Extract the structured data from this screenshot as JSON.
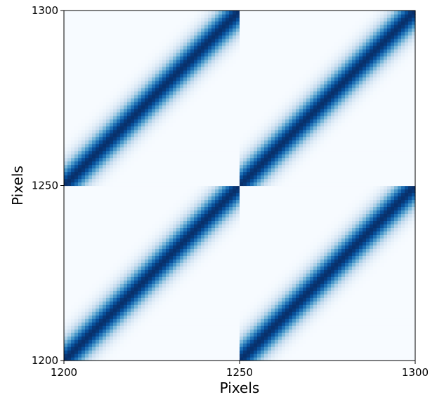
{
  "chart_data": {
    "type": "heatmap",
    "title": "",
    "xlabel": "Pixels",
    "ylabel": "Pixels",
    "xlim": [
      1200,
      1300
    ],
    "ylim": [
      1200,
      1300
    ],
    "xticks": [
      1200,
      1250,
      1300
    ],
    "yticks": [
      1200,
      1250,
      1300
    ],
    "grid": false,
    "colormap": "Blues",
    "colors": {
      "low": "#f7fbff",
      "high": "#08306b"
    },
    "pattern": {
      "description_values": "Block-periodic correlation: value depends on diagonal offset within each 50-pixel block",
      "period": 50,
      "peak_value": 1.0,
      "gaussian_sigma": 4
    },
    "blocks": [
      {
        "x_range": [
          1200,
          1250
        ],
        "y_range": [
          1200,
          1250
        ],
        "band": "diagonal"
      },
      {
        "x_range": [
          1250,
          1300
        ],
        "y_range": [
          1200,
          1250
        ],
        "band": "diagonal"
      },
      {
        "x_range": [
          1200,
          1250
        ],
        "y_range": [
          1250,
          1300
        ],
        "band": "diagonal"
      },
      {
        "x_range": [
          1250,
          1300
        ],
        "y_range": [
          1250,
          1300
        ],
        "band": "diagonal"
      }
    ]
  }
}
